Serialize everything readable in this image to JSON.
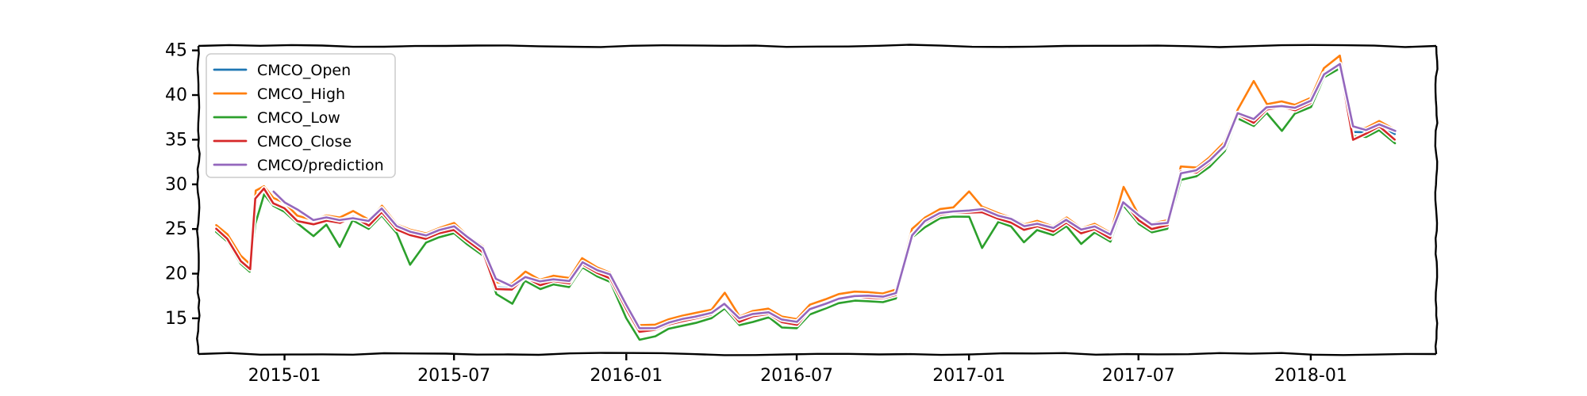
{
  "chart_data": {
    "type": "line",
    "title": "",
    "xlabel": "",
    "ylabel": "",
    "style": "xkcd",
    "grid": false,
    "legend_position": "top-left",
    "xlim": [
      "2014-10-01",
      "2018-05-15"
    ],
    "ylim": [
      11,
      45.5
    ],
    "x_ticks": [
      "2015-01",
      "2015-07",
      "2016-01",
      "2016-07",
      "2017-01",
      "2017-07",
      "2018-01"
    ],
    "y_ticks": [
      15,
      20,
      25,
      30,
      35,
      40,
      45
    ],
    "series_colors": {
      "CMCO_Open": "#1f77b4",
      "CMCO_High": "#ff7f0e",
      "CMCO_Low": "#2ca02c",
      "CMCO_Close": "#d62728",
      "CMCO/prediction": "#9467bd"
    },
    "x": [
      "2014-10-20",
      "2014-11-01",
      "2014-11-15",
      "2014-11-25",
      "2014-12-01",
      "2014-12-10",
      "2014-12-20",
      "2015-01-01",
      "2015-01-15",
      "2015-02-01",
      "2015-02-15",
      "2015-03-01",
      "2015-03-15",
      "2015-04-01",
      "2015-04-15",
      "2015-05-01",
      "2015-05-15",
      "2015-06-01",
      "2015-06-15",
      "2015-07-01",
      "2015-07-15",
      "2015-08-01",
      "2015-08-15",
      "2015-09-01",
      "2015-09-15",
      "2015-10-01",
      "2015-10-15",
      "2015-11-01",
      "2015-11-15",
      "2015-12-01",
      "2015-12-15",
      "2016-01-01",
      "2016-01-15",
      "2016-02-01",
      "2016-02-15",
      "2016-03-01",
      "2016-03-15",
      "2016-04-01",
      "2016-04-15",
      "2016-05-01",
      "2016-05-15",
      "2016-06-01",
      "2016-06-15",
      "2016-07-01",
      "2016-07-15",
      "2016-08-01",
      "2016-08-15",
      "2016-09-01",
      "2016-09-15",
      "2016-10-01",
      "2016-10-15",
      "2016-11-01",
      "2016-11-15",
      "2016-12-01",
      "2016-12-15",
      "2017-01-01",
      "2017-01-15",
      "2017-02-01",
      "2017-02-15",
      "2017-03-01",
      "2017-03-15",
      "2017-04-01",
      "2017-04-15",
      "2017-05-01",
      "2017-05-15",
      "2017-06-01",
      "2017-06-15",
      "2017-07-01",
      "2017-07-15",
      "2017-08-01",
      "2017-08-15",
      "2017-09-01",
      "2017-09-15",
      "2017-10-01",
      "2017-10-15",
      "2017-11-01",
      "2017-11-15",
      "2017-12-01",
      "2017-12-15",
      "2018-01-01",
      "2018-01-15",
      "2018-02-01",
      "2018-02-15",
      "2018-03-01",
      "2018-03-15",
      "2018-04-01"
    ],
    "series": [
      {
        "name": "CMCO_Open",
        "values": [
          25.1,
          24.0,
          21.5,
          20.6,
          28.5,
          29.4,
          28.0,
          27.4,
          26.0,
          25.6,
          26.0,
          25.8,
          26.5,
          25.5,
          27.0,
          25.0,
          24.4,
          24.0,
          24.6,
          25.0,
          23.8,
          22.5,
          18.5,
          18.4,
          19.7,
          18.8,
          19.3,
          19.0,
          21.2,
          20.2,
          19.6,
          16.2,
          13.7,
          13.8,
          14.4,
          14.8,
          15.1,
          15.5,
          16.6,
          14.7,
          15.3,
          15.6,
          14.7,
          14.4,
          16.0,
          16.6,
          17.2,
          17.5,
          17.4,
          17.3,
          17.7,
          24.5,
          25.8,
          26.7,
          26.9,
          26.9,
          27.0,
          26.3,
          25.8,
          25.0,
          25.4,
          24.8,
          25.8,
          24.6,
          25.1,
          24.1,
          28.2,
          26.1,
          25.1,
          25.5,
          31.5,
          31.4,
          32.5,
          34.2,
          37.9,
          37.0,
          38.5,
          38.8,
          38.4,
          39.2,
          42.5,
          43.5,
          35.9,
          35.8,
          36.6,
          35.6
        ]
      },
      {
        "name": "CMCO_High",
        "values": [
          25.4,
          24.4,
          22.0,
          21.1,
          29.3,
          29.8,
          28.5,
          27.9,
          26.5,
          26.0,
          26.5,
          26.3,
          27.0,
          26.0,
          27.6,
          25.5,
          24.9,
          24.5,
          25.1,
          25.7,
          24.3,
          23.0,
          19.0,
          18.9,
          20.2,
          19.3,
          19.8,
          19.5,
          21.7,
          20.7,
          20.1,
          16.7,
          14.2,
          14.3,
          14.9,
          15.3,
          15.6,
          16.0,
          17.9,
          15.2,
          15.8,
          16.1,
          15.2,
          14.9,
          16.5,
          17.1,
          17.7,
          18.0,
          17.9,
          17.8,
          18.2,
          25.0,
          26.3,
          27.2,
          27.4,
          29.2,
          27.5,
          26.8,
          26.3,
          25.5,
          25.9,
          25.3,
          26.3,
          25.1,
          25.6,
          24.6,
          29.7,
          26.6,
          25.6,
          26.0,
          32.0,
          31.9,
          33.0,
          34.7,
          38.4,
          41.6,
          39.0,
          39.3,
          38.9,
          39.7,
          43.0,
          44.4,
          36.4,
          36.3,
          37.1,
          36.1
        ]
      },
      {
        "name": "CMCO_Low",
        "values": [
          24.7,
          23.6,
          21.1,
          20.2,
          25.6,
          28.9,
          27.6,
          26.9,
          25.6,
          24.2,
          25.5,
          23.0,
          26.0,
          25.0,
          26.5,
          24.5,
          21.0,
          23.5,
          24.1,
          24.5,
          23.3,
          22.0,
          17.7,
          16.6,
          19.2,
          18.3,
          18.8,
          18.5,
          20.7,
          19.7,
          19.1,
          15.0,
          12.6,
          13.0,
          13.8,
          14.2,
          14.5,
          15.0,
          16.1,
          14.2,
          14.6,
          15.1,
          14.0,
          13.9,
          15.4,
          16.1,
          16.7,
          17.0,
          16.9,
          16.8,
          17.2,
          24.0,
          25.2,
          26.2,
          26.4,
          26.4,
          22.9,
          25.8,
          25.3,
          23.5,
          24.9,
          24.3,
          25.3,
          23.3,
          24.6,
          23.6,
          27.7,
          25.6,
          24.6,
          25.0,
          30.5,
          30.9,
          32.0,
          33.7,
          37.4,
          36.5,
          38.0,
          36.0,
          37.9,
          38.7,
          42.0,
          43.0,
          35.4,
          35.3,
          36.1,
          34.6
        ]
      },
      {
        "name": "CMCO_Close",
        "values": [
          25.0,
          23.9,
          21.4,
          20.5,
          28.4,
          29.5,
          27.9,
          27.3,
          25.9,
          25.5,
          25.9,
          25.7,
          26.4,
          25.4,
          26.9,
          24.9,
          24.3,
          23.9,
          24.5,
          24.9,
          23.7,
          22.4,
          18.3,
          18.2,
          19.6,
          18.7,
          19.2,
          18.9,
          21.1,
          20.1,
          19.5,
          16.0,
          13.5,
          13.7,
          14.3,
          14.7,
          15.0,
          15.4,
          16.5,
          14.6,
          15.2,
          15.5,
          14.6,
          14.3,
          15.9,
          16.5,
          17.1,
          17.4,
          17.3,
          17.2,
          17.6,
          24.4,
          25.7,
          26.6,
          26.8,
          26.8,
          26.9,
          26.2,
          25.7,
          24.9,
          25.3,
          24.7,
          25.7,
          24.5,
          25.0,
          24.0,
          28.1,
          26.0,
          25.0,
          25.4,
          31.4,
          31.3,
          32.4,
          34.1,
          37.8,
          36.9,
          38.4,
          38.7,
          38.3,
          39.1,
          42.4,
          43.4,
          35.0,
          35.7,
          36.5,
          35.0
        ]
      },
      {
        "name": "CMCO/prediction",
        "values": [
          null,
          null,
          null,
          null,
          null,
          null,
          29.2,
          28.0,
          27.2,
          26.0,
          26.3,
          26.0,
          26.2,
          25.9,
          27.3,
          25.3,
          24.7,
          24.3,
          24.9,
          25.3,
          24.1,
          22.8,
          19.4,
          18.6,
          19.6,
          19.1,
          19.4,
          19.2,
          21.3,
          20.4,
          19.9,
          16.5,
          13.9,
          13.9,
          14.5,
          14.9,
          15.2,
          15.6,
          16.6,
          15.0,
          15.5,
          15.7,
          14.9,
          14.6,
          16.0,
          16.6,
          17.2,
          17.5,
          17.5,
          17.4,
          17.8,
          24.3,
          25.9,
          26.8,
          27.0,
          27.1,
          27.2,
          26.5,
          26.1,
          25.3,
          25.6,
          25.1,
          26.0,
          24.9,
          25.3,
          24.4,
          28.0,
          26.5,
          25.5,
          25.7,
          31.2,
          31.6,
          32.7,
          34.3,
          38.0,
          37.3,
          38.6,
          38.8,
          38.6,
          39.4,
          42.3,
          43.5,
          36.5,
          36.1,
          36.7,
          36.0
        ]
      }
    ]
  }
}
